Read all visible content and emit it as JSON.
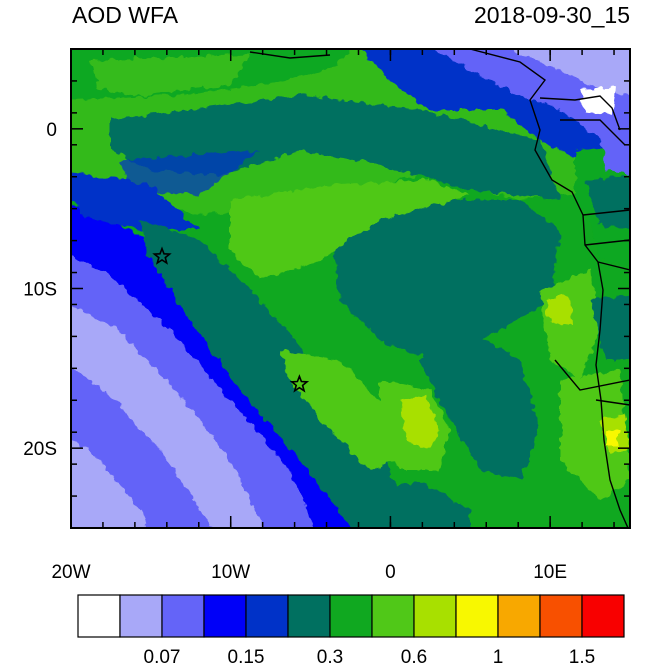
{
  "header": {
    "title": "AOD WFA",
    "timestamp": "2018-09-30_15"
  },
  "axes": {
    "y_ticks": [
      {
        "value": 0,
        "label": "0"
      },
      {
        "value": -10,
        "label": "10S"
      },
      {
        "value": -20,
        "label": "20S"
      }
    ],
    "x_ticks": [
      {
        "value": -20,
        "label": "20W"
      },
      {
        "value": -10,
        "label": "10W"
      },
      {
        "value": 0,
        "label": "0"
      },
      {
        "value": 10,
        "label": "10E"
      }
    ],
    "lon_range": [
      -20,
      15
    ],
    "lat_range": [
      -25,
      5
    ]
  },
  "markers": [
    {
      "name": "star-marker",
      "lon": -14.3,
      "lat": -8.0
    },
    {
      "name": "star-marker",
      "lon": -5.7,
      "lat": -16.0
    }
  ],
  "colorbar": {
    "colors": [
      "#ffffff",
      "#a8a8f8",
      "#6464f8",
      "#0000f8",
      "#0032c8",
      "#007060",
      "#10a820",
      "#50c818",
      "#a8e000",
      "#f8f800",
      "#f8a800",
      "#f85000",
      "#f80000"
    ],
    "labels": [
      {
        "boundary": 2,
        "text": "0.07"
      },
      {
        "boundary": 4,
        "text": "0.15"
      },
      {
        "boundary": 6,
        "text": "0.3"
      },
      {
        "boundary": 8,
        "text": "0.6"
      },
      {
        "boundary": 10,
        "text": "1"
      },
      {
        "boundary": 12,
        "text": "1.5"
      }
    ]
  }
}
